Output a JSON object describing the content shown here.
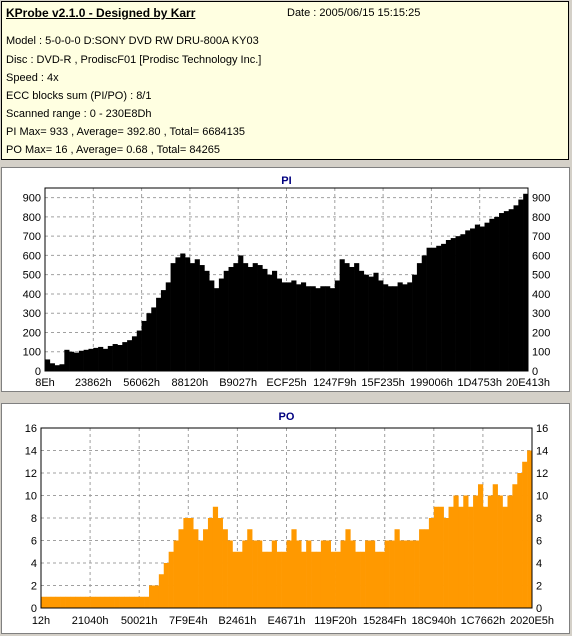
{
  "header": {
    "title": "KProbe v2.1.0 - Designed by Karr",
    "date": "Date : 2005/06/15 15:15:25",
    "lines": [
      "Model : 5-0-0-0 D:SONY    DVD RW DRU-800A  KY03",
      "Disc : DVD-R , ProdiscF01 [Prodisc Technology Inc.]",
      "Speed : 4x",
      "ECC blocks sum (PI/PO) : 8/1",
      "Scanned range : 0 - 230E8Dh",
      "PI Max= 933 , Average= 392.80 , Total= 6684135",
      "PO Max= 16 , Average= 0.68 , Total= 84265"
    ]
  },
  "chart_data": [
    {
      "type": "area",
      "title": "PI",
      "color": "#000000",
      "ylim": [
        0,
        950
      ],
      "yticks": [
        0,
        100,
        200,
        300,
        400,
        500,
        600,
        700,
        800,
        900
      ],
      "xticks": [
        "8Eh",
        "23862h",
        "56062h",
        "88120h",
        "B9027h",
        "ECF25h",
        "1247F9h",
        "15F235h",
        "199006h",
        "1D4753h",
        "20E413h"
      ],
      "grid": true,
      "x_samples": 100,
      "values": [
        60,
        40,
        30,
        35,
        110,
        100,
        95,
        105,
        110,
        115,
        120,
        125,
        115,
        130,
        140,
        135,
        150,
        160,
        180,
        210,
        260,
        300,
        330,
        380,
        420,
        460,
        560,
        590,
        610,
        590,
        560,
        580,
        550,
        520,
        470,
        430,
        480,
        520,
        540,
        560,
        600,
        560,
        540,
        560,
        550,
        530,
        500,
        520,
        480,
        460,
        460,
        470,
        450,
        460,
        440,
        440,
        430,
        440,
        440,
        430,
        470,
        580,
        560,
        540,
        560,
        520,
        500,
        490,
        510,
        470,
        450,
        440,
        440,
        460,
        450,
        460,
        500,
        560,
        600,
        640,
        640,
        650,
        660,
        680,
        690,
        700,
        710,
        730,
        740,
        760,
        750,
        770,
        790,
        800,
        820,
        830,
        840,
        860,
        890,
        920
      ]
    },
    {
      "type": "bar",
      "title": "PO",
      "color": "#ff9900",
      "ylim": [
        0,
        16
      ],
      "yticks": [
        0,
        2,
        4,
        6,
        8,
        10,
        12,
        14,
        16
      ],
      "xticks": [
        "12h",
        "21040h",
        "50021h",
        "7F9E4h",
        "B2461h",
        "E4671h",
        "119F20h",
        "15284Fh",
        "18C940h",
        "1C7662h",
        "2020E5h"
      ],
      "grid": true,
      "x_samples": 100,
      "values": [
        1,
        1,
        1,
        1,
        1,
        1,
        1,
        1,
        1,
        1,
        1,
        1,
        1,
        1,
        1,
        1,
        1,
        1,
        1,
        1,
        1,
        1,
        2,
        2,
        3,
        4,
        5,
        6,
        7,
        8,
        8,
        7,
        6,
        7,
        8,
        9,
        8,
        7,
        6,
        5,
        5,
        6,
        7,
        6,
        6,
        5,
        5,
        6,
        5,
        5,
        6,
        7,
        6,
        5,
        6,
        5,
        5,
        6,
        6,
        5,
        5,
        6,
        7,
        6,
        5,
        5,
        6,
        6,
        5,
        5,
        6,
        6,
        7,
        6,
        6,
        6,
        6,
        7,
        7,
        8,
        9,
        9,
        8,
        9,
        10,
        9,
        10,
        9,
        10,
        11,
        9,
        10,
        11,
        10,
        9,
        10,
        11,
        12,
        13,
        14
      ]
    }
  ]
}
